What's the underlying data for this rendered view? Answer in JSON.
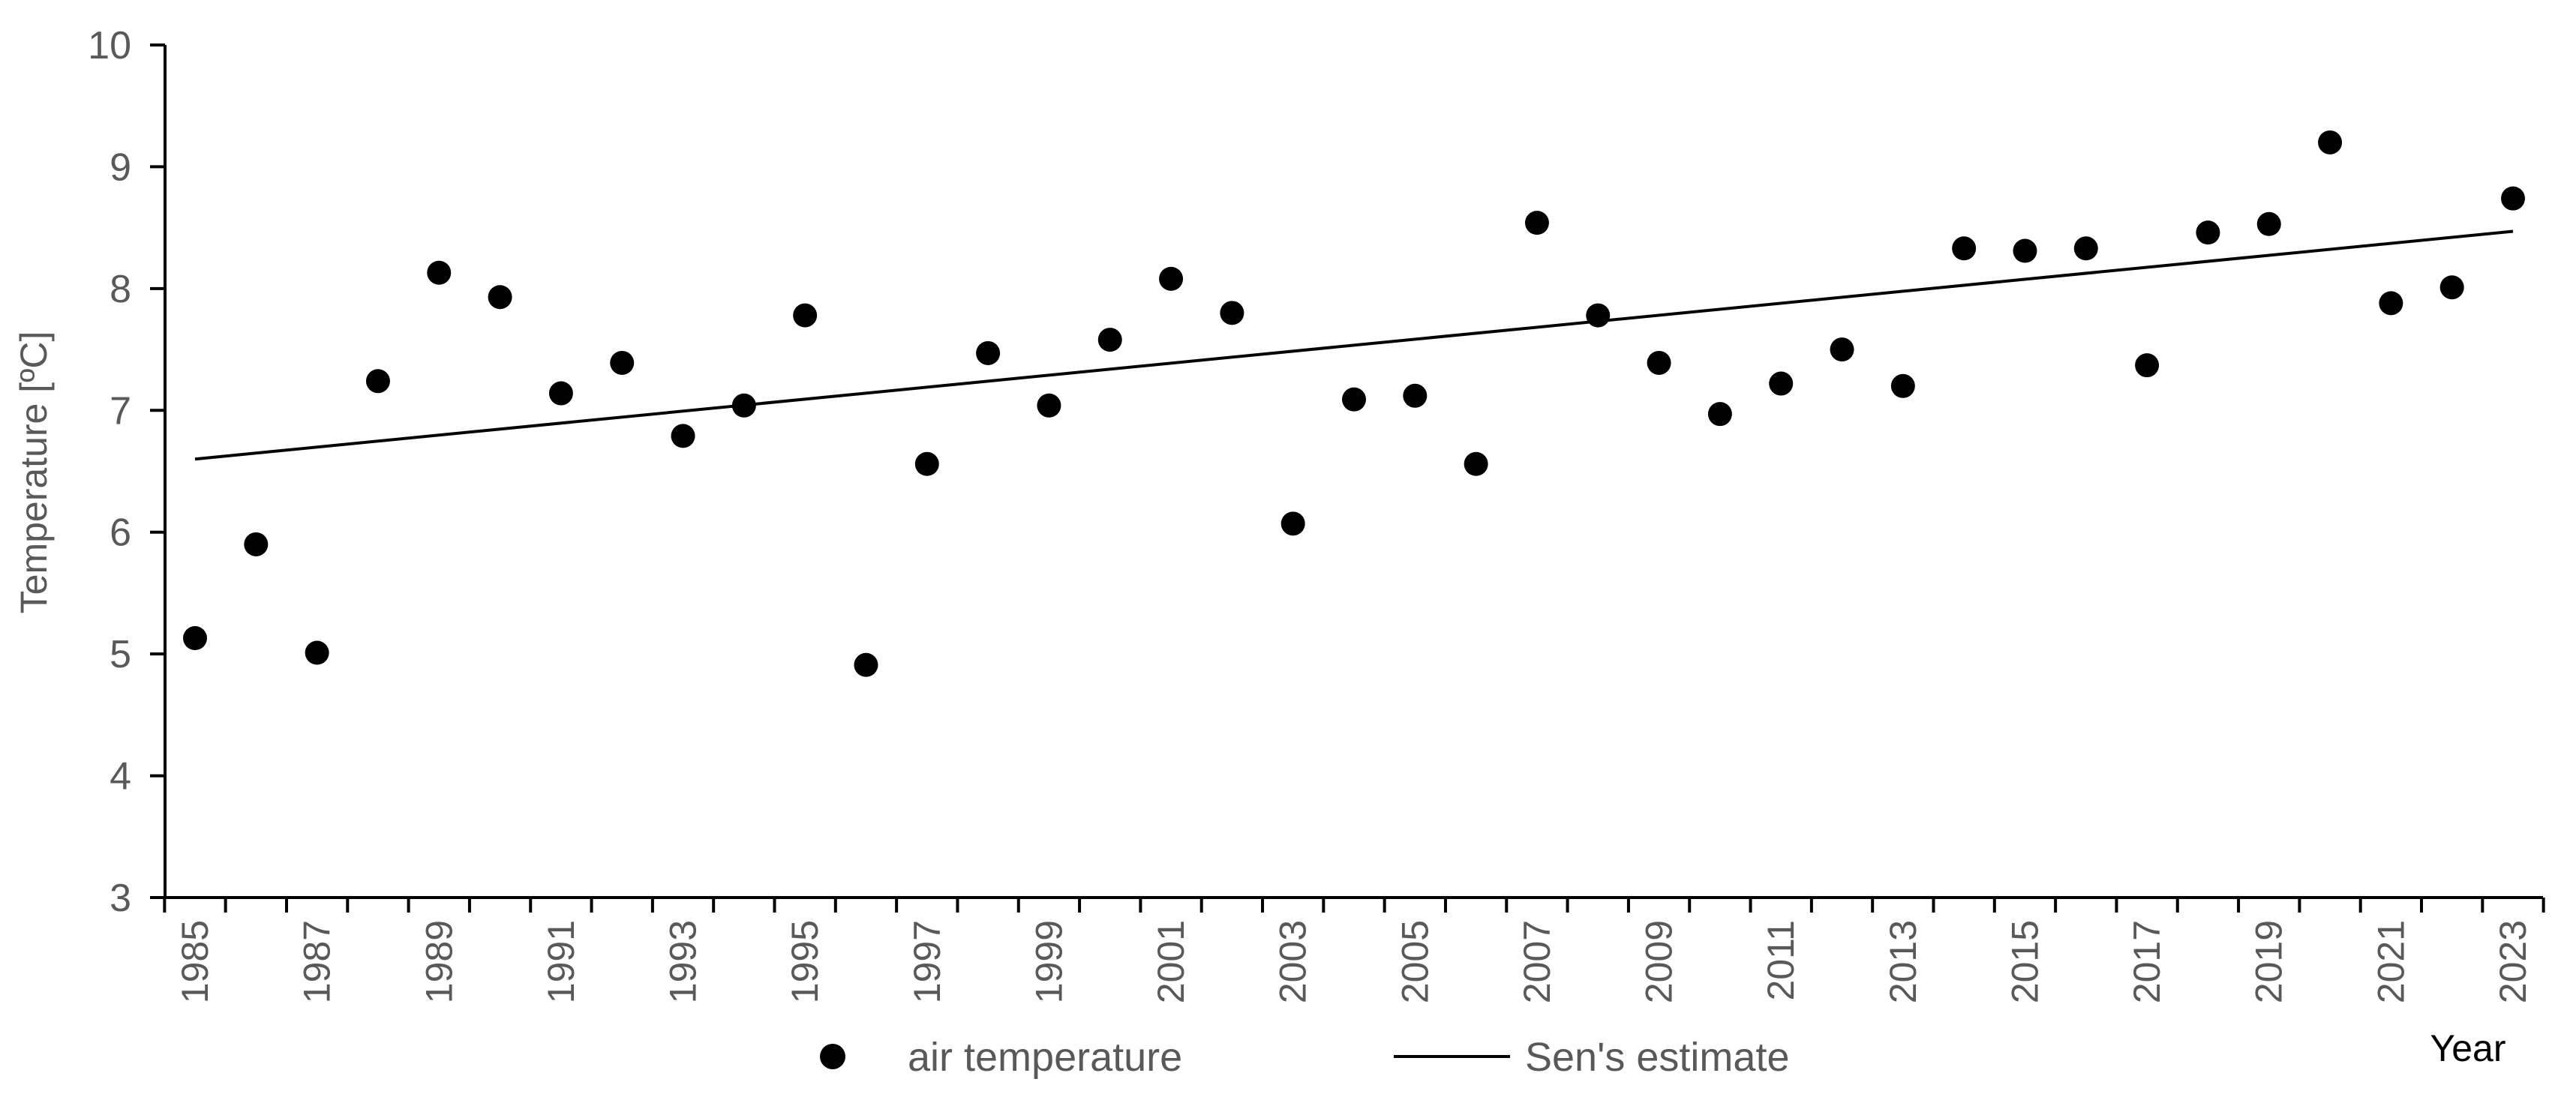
{
  "chart_data": {
    "type": "scatter",
    "xlabel": "Year",
    "ylabel": "Temperature [ºC]",
    "xlim": [
      1985,
      2023
    ],
    "ylim": [
      3,
      10
    ],
    "y_ticks": [
      "3",
      "4",
      "5",
      "6",
      "7",
      "8",
      "9",
      "10"
    ],
    "x_ticks": [
      "1985",
      "1987",
      "1989",
      "1991",
      "1993",
      "1995",
      "1997",
      "1999",
      "2001",
      "2003",
      "2005",
      "2007",
      "2009",
      "2011",
      "2013",
      "2015",
      "2017",
      "2019",
      "2021",
      "2023"
    ],
    "grid": false,
    "legend": "bottom-center",
    "series": [
      {
        "name": "air temperature",
        "kind": "points",
        "color": "#000000",
        "x": [
          1985,
          1986,
          1987,
          1988,
          1989,
          1990,
          1991,
          1992,
          1993,
          1994,
          1995,
          1996,
          1997,
          1998,
          1999,
          2000,
          2001,
          2002,
          2003,
          2004,
          2005,
          2006,
          2007,
          2008,
          2009,
          2010,
          2011,
          2012,
          2013,
          2014,
          2015,
          2016,
          2017,
          2018,
          2019,
          2020,
          2021,
          2022,
          2023
        ],
        "y": [
          5.13,
          5.9,
          5.01,
          7.24,
          8.13,
          7.93,
          7.14,
          7.39,
          6.79,
          7.04,
          7.78,
          4.91,
          6.56,
          7.47,
          7.04,
          7.58,
          8.08,
          7.8,
          6.07,
          7.09,
          7.12,
          6.56,
          8.54,
          7.78,
          7.39,
          6.97,
          7.22,
          7.5,
          7.2,
          8.33,
          8.31,
          8.33,
          7.37,
          8.46,
          8.53,
          9.2,
          7.88,
          8.01,
          8.74
        ]
      },
      {
        "name": "Sen's estimate",
        "kind": "line",
        "color": "#000000",
        "x": [
          1985,
          2023
        ],
        "y": [
          6.6,
          8.47
        ]
      }
    ]
  }
}
